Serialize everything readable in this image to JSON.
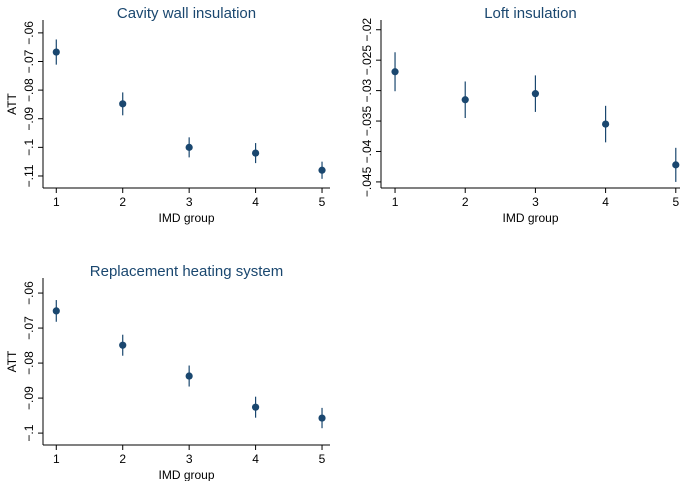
{
  "chart_data": [
    {
      "type": "scatter",
      "title": "Cavity wall insulation",
      "y_label": "ATT",
      "x_label": "IMD group",
      "x": [
        1,
        2,
        3,
        4,
        5
      ],
      "values": [
        -0.0667,
        -0.0848,
        -0.1,
        -0.102,
        -0.108
      ],
      "errors": [
        0.0044,
        0.004,
        0.0035,
        0.0035,
        0.003
      ],
      "color": "#1a476f",
      "xlim": [
        0.8,
        5.12
      ],
      "xticks": [
        1,
        2,
        3,
        4,
        5
      ],
      "ylim": [
        -0.1142,
        -0.0555
      ],
      "yticks": [
        {
          "value": -0.11,
          "label": "−.11"
        },
        {
          "value": -0.1,
          "label": "−.1"
        },
        {
          "value": -0.09,
          "label": "−.09"
        },
        {
          "value": -0.08,
          "label": "−.08"
        },
        {
          "value": -0.07,
          "label": "−.07"
        },
        {
          "value": -0.06,
          "label": "−.06"
        }
      ]
    },
    {
      "type": "scatter",
      "title": "Loft insulation",
      "x_label": "IMD group",
      "x": [
        1,
        2,
        3,
        4,
        5
      ],
      "values": [
        -0.0269,
        -0.0315,
        -0.0305,
        -0.0355,
        -0.0422
      ],
      "errors": [
        0.0032,
        0.003,
        0.003,
        0.003,
        0.0028
      ],
      "color": "#1a476f",
      "xlim": [
        0.8,
        5.06
      ],
      "xticks": [
        1,
        2,
        3,
        4,
        5
      ],
      "ylim": [
        -0.046,
        -0.0184
      ],
      "yticks": [
        {
          "value": -0.045,
          "label": "−.045"
        },
        {
          "value": -0.04,
          "label": "−.04"
        },
        {
          "value": -0.035,
          "label": "−.035"
        },
        {
          "value": -0.03,
          "label": "−.03"
        },
        {
          "value": -0.025,
          "label": "−.025"
        },
        {
          "value": -0.02,
          "label": "−.02"
        }
      ]
    },
    {
      "type": "scatter",
      "title": "Replacement heating system",
      "y_label": "ATT",
      "x_label": "IMD group",
      "x": [
        1,
        2,
        3,
        4,
        5
      ],
      "values": [
        -0.0651,
        -0.0749,
        -0.0837,
        -0.0926,
        -0.0957
      ],
      "errors": [
        0.0031,
        0.003,
        0.003,
        0.003,
        0.0029
      ],
      "color": "#1a476f",
      "xlim": [
        0.8,
        5.12
      ],
      "xticks": [
        1,
        2,
        3,
        4,
        5
      ],
      "ylim": [
        -0.1034,
        -0.0557
      ],
      "yticks": [
        {
          "value": -0.1,
          "label": "−.1"
        },
        {
          "value": -0.09,
          "label": "−.09"
        },
        {
          "value": -0.08,
          "label": "−.08"
        },
        {
          "value": -0.07,
          "label": "−.07"
        },
        {
          "value": -0.06,
          "label": "−.06"
        }
      ]
    }
  ]
}
